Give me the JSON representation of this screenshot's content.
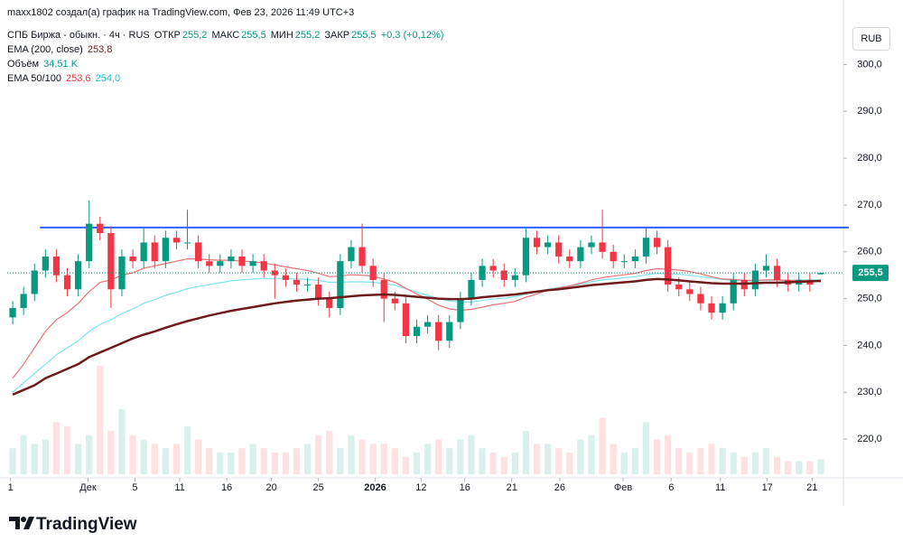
{
  "header": {
    "author_line": "maxx1802 создал(а) график на TradingView.com, Фев 23, 2026 11:49 UTC+3",
    "symbol": "СПБ Биржа - обыкн. · 4ч · RUS",
    "open_label": "ОТКР",
    "open": "255,2",
    "high_label": "МАКС",
    "high": "255,5",
    "low_label": "МИН",
    "low": "255,2",
    "close_label": "ЗАКР",
    "close": "255,5",
    "change": "+0,3 (+0,12%)",
    "ema200_label": "EMA (200, close)",
    "ema200_value": "253,8",
    "volume_label": "Объём",
    "volume_value": "34,51 K",
    "ema50_100_label": "EMA 50/100",
    "ema50_value": "253,6",
    "ema100_value": "254,0",
    "currency": "RUB"
  },
  "chart_data": {
    "type": "candlestick",
    "up_color": "#089981",
    "down_color": "#f23645",
    "xlim": [
      -0.5,
      74.5
    ],
    "ylim": [
      212.5,
      308
    ],
    "yticks": [
      {
        "value": 220,
        "label": "220,0"
      },
      {
        "value": 230,
        "label": "230,0"
      },
      {
        "value": 240,
        "label": "240,0"
      },
      {
        "value": 250,
        "label": "250,0"
      },
      {
        "value": 260,
        "label": "260,0"
      },
      {
        "value": 270,
        "label": "270,0"
      },
      {
        "value": 280,
        "label": "280,0"
      },
      {
        "value": 290,
        "label": "290,0"
      },
      {
        "value": 300,
        "label": "300,0"
      }
    ],
    "xticks": [
      {
        "value": -0.2,
        "label": "1"
      },
      {
        "value": 6.9,
        "label": "Дек"
      },
      {
        "value": 11.2,
        "label": "5"
      },
      {
        "value": 15.3,
        "label": "11"
      },
      {
        "value": 19.6,
        "label": "16"
      },
      {
        "value": 23.7,
        "label": "20"
      },
      {
        "value": 28,
        "label": "25"
      },
      {
        "value": 33.2,
        "label": "2026"
      },
      {
        "value": 37.4,
        "label": "12"
      },
      {
        "value": 41.4,
        "label": "16"
      },
      {
        "value": 45.7,
        "label": "21"
      },
      {
        "value": 50.1,
        "label": "26"
      },
      {
        "value": 55.9,
        "label": "Фев"
      },
      {
        "value": 60.3,
        "label": "6"
      },
      {
        "value": 64.8,
        "label": "11"
      },
      {
        "value": 69.1,
        "label": "17"
      },
      {
        "value": 73.2,
        "label": "21"
      }
    ],
    "open": [
      246,
      248,
      251,
      256,
      259,
      255,
      252,
      258,
      266,
      264,
      252,
      259,
      258,
      262,
      258,
      263,
      262,
      262,
      258,
      257,
      258,
      259,
      257,
      258,
      256,
      255,
      254,
      253,
      253,
      250,
      248,
      258,
      261,
      257,
      254,
      250,
      249,
      242,
      244,
      245,
      241,
      245,
      250,
      254,
      257,
      256,
      254,
      255,
      263,
      261,
      262,
      259,
      258,
      261,
      262,
      260,
      258,
      258,
      259,
      263,
      261,
      253,
      252,
      251,
      249,
      247,
      249,
      254,
      252,
      256,
      257,
      254,
      253,
      254,
      255.2
    ],
    "high": [
      249.5,
      252.5,
      257.5,
      260.5,
      260.5,
      256.5,
      259.5,
      271,
      267.5,
      265.5,
      260.5,
      260.5,
      265,
      263.5,
      264.5,
      264.5,
      269,
      263.5,
      259.5,
      259.5,
      260.5,
      260.5,
      259.5,
      259.5,
      257.5,
      256.5,
      255.5,
      254.5,
      254.5,
      251.5,
      259.5,
      262.5,
      266,
      258.5,
      255.5,
      251.5,
      250.5,
      245.5,
      246.5,
      246.5,
      246.5,
      251.5,
      255.5,
      258.5,
      258.5,
      257.5,
      256.5,
      265,
      264.5,
      263.5,
      263.5,
      260.5,
      262.5,
      263.5,
      269,
      261.5,
      259.5,
      260.5,
      265,
      264.5,
      262.5,
      254.5,
      253.5,
      252.5,
      250.5,
      250.5,
      255.5,
      255.5,
      257.5,
      259.5,
      258.5,
      255.5,
      255.5,
      255.5,
      255.5
    ],
    "low": [
      244.5,
      246.5,
      249.5,
      254.5,
      253.5,
      250.5,
      250.5,
      256.5,
      262.5,
      248,
      250.5,
      256.5,
      256.5,
      256.5,
      256.5,
      260.5,
      260.5,
      256.5,
      255.5,
      255.5,
      256.5,
      255.5,
      255.5,
      254.5,
      250,
      252.5,
      251.5,
      251.5,
      248.5,
      246,
      246.5,
      256.5,
      255.5,
      252.5,
      245,
      247.5,
      240.5,
      240.5,
      242.5,
      239,
      239.5,
      243.5,
      248.5,
      252.5,
      254.5,
      252.5,
      252.5,
      253.5,
      259.5,
      259.5,
      257.5,
      256.5,
      256.5,
      259.5,
      258.5,
      256.5,
      256.5,
      256.5,
      257.5,
      259.5,
      251.5,
      250.5,
      249.5,
      247.5,
      245.5,
      245.5,
      247.5,
      250.5,
      250.5,
      254.5,
      252.5,
      251.5,
      251.5,
      251.5,
      255.2
    ],
    "close": [
      248,
      251,
      256,
      259,
      255,
      252,
      258,
      266,
      264,
      252,
      259,
      258,
      262,
      258,
      263,
      262,
      262,
      258,
      257,
      258,
      259,
      257,
      258,
      256,
      255,
      254,
      253,
      253,
      250,
      248,
      258,
      261,
      257,
      254,
      250,
      249,
      242,
      244,
      245,
      241,
      245,
      250,
      254,
      257,
      256,
      254,
      255,
      263,
      261,
      262,
      259,
      258,
      261,
      262,
      260,
      258,
      258,
      259,
      263,
      261,
      253,
      252,
      251,
      249,
      247,
      249,
      254,
      252,
      256,
      257,
      254,
      253,
      254,
      253,
      255.5
    ],
    "volume": [
      60,
      90,
      70,
      80,
      120,
      110,
      70,
      90,
      250,
      100,
      150,
      90,
      80,
      70,
      60,
      70,
      110,
      80,
      60,
      50,
      50,
      60,
      70,
      60,
      50,
      50,
      60,
      70,
      90,
      100,
      60,
      90,
      80,
      70,
      70,
      60,
      40,
      50,
      70,
      80,
      60,
      80,
      90,
      60,
      50,
      40,
      50,
      100,
      70,
      70,
      60,
      50,
      80,
      90,
      130,
      70,
      50,
      60,
      120,
      80,
      90,
      60,
      50,
      60,
      70,
      60,
      50,
      40,
      50,
      60,
      40,
      30,
      30,
      30,
      34.51
    ],
    "ema200": {
      "color": "#6d1b1b",
      "values": [
        229.5,
        230.5,
        231.5,
        233,
        234,
        235,
        236,
        237.5,
        238.5,
        239.5,
        240.5,
        241.5,
        242.3,
        243,
        243.8,
        244.5,
        245.2,
        245.8,
        246.4,
        246.9,
        247.4,
        247.8,
        248.2,
        248.6,
        249,
        249.3,
        249.6,
        249.8,
        250,
        250.1,
        250.3,
        250.5,
        250.7,
        250.8,
        250.9,
        250.8,
        250.6,
        250.4,
        250.2,
        250,
        249.9,
        249.9,
        250,
        250.3,
        250.5,
        250.7,
        250.9,
        251.2,
        251.5,
        251.8,
        252,
        252.3,
        252.6,
        252.9,
        253.1,
        253.3,
        253.5,
        253.7,
        254,
        254.2,
        254.1,
        253.9,
        253.7,
        253.5,
        253.3,
        253.2,
        253.2,
        253.2,
        253.3,
        253.4,
        253.4,
        253.5,
        253.6,
        253.7,
        253.8
      ]
    },
    "ema50": {
      "color": "#e57373",
      "values": [
        233,
        236,
        239.5,
        243,
        245.5,
        247,
        249,
        251.5,
        253.5,
        254,
        255,
        255.5,
        256.5,
        257,
        257.5,
        258,
        258.5,
        258.5,
        258.3,
        258.2,
        258.2,
        258,
        257.9,
        257.6,
        257.2,
        256.8,
        256.4,
        256,
        255.4,
        254.7,
        254.8,
        255.1,
        255,
        254.8,
        254.2,
        253.5,
        252.2,
        251,
        249.9,
        248.6,
        247.8,
        247.5,
        247.7,
        248.2,
        248.7,
        249,
        249.4,
        250.3,
        251,
        251.8,
        252.3,
        252.7,
        253.3,
        254,
        254.5,
        254.8,
        255.1,
        255.4,
        256,
        256.4,
        256.3,
        256.1,
        255.8,
        255.3,
        254.7,
        254.2,
        254.1,
        253.9,
        253.9,
        254,
        254,
        253.9,
        253.9,
        253.8,
        253.6
      ]
    },
    "ema100": {
      "color": "#7fe3ef",
      "values": [
        230,
        232,
        234,
        236,
        238,
        239.5,
        241,
        243,
        244.5,
        245.5,
        246.8,
        247.8,
        249,
        249.8,
        250.7,
        251.4,
        252.1,
        252.6,
        253,
        253.4,
        253.8,
        254,
        254.2,
        254.3,
        254.3,
        254.3,
        254.2,
        254.1,
        253.9,
        253.5,
        253.5,
        253.6,
        253.6,
        253.5,
        253.2,
        252.9,
        252.1,
        251.4,
        250.7,
        250,
        249.5,
        249.3,
        249.3,
        249.6,
        249.9,
        250.1,
        250.4,
        251,
        251.5,
        252,
        252.4,
        252.7,
        253.1,
        253.6,
        254,
        254.2,
        254.5,
        254.7,
        255.1,
        255.4,
        255.3,
        255.2,
        255,
        254.7,
        254.4,
        254.1,
        253.9,
        253.8,
        253.8,
        253.9,
        253.9,
        253.9,
        254,
        254,
        254
      ]
    },
    "hline": {
      "value": 265.2,
      "color": "#2962ff"
    },
    "last_price": {
      "value": 255.5,
      "label": "255,5"
    }
  },
  "brand": "TradingView"
}
